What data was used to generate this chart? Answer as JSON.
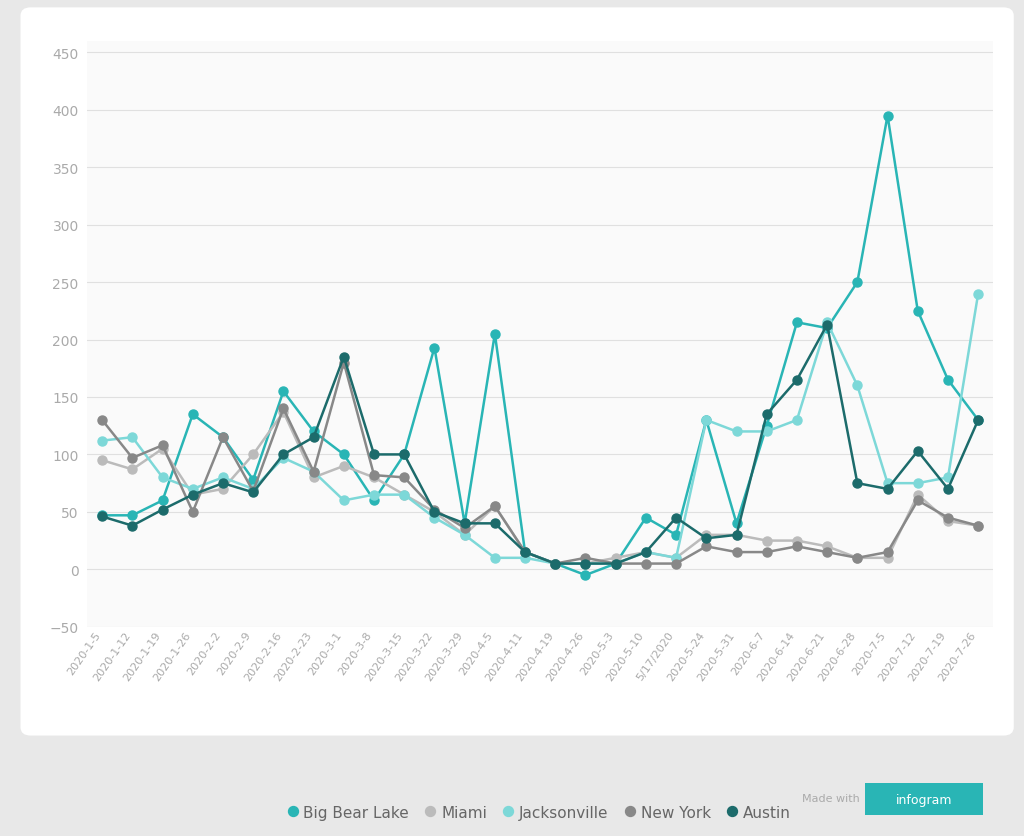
{
  "x_labels": [
    "2020-1-5",
    "2020-1-12",
    "2020-1-19",
    "2020-1-26",
    "2020-2-2",
    "2020-2-9",
    "2020-2-16",
    "2020-2-23",
    "2020-3-1",
    "2020-3-8",
    "2020-3-15",
    "2020-3-22",
    "2020-3-29",
    "2020-4-5",
    "2020-4-11",
    "2020-4-19",
    "2020-4-26",
    "2020-5-3",
    "2020-5-10",
    "5/17/2020",
    "2020-5-24",
    "2020-5-31",
    "2020-6-7",
    "2020-6-14",
    "2020-6-21",
    "2020-6-28",
    "2020-7-5",
    "2020-7-12",
    "2020-7-19",
    "2020-7-26"
  ],
  "big_bear_lake": [
    47,
    47,
    60,
    135,
    115,
    78,
    155,
    120,
    100,
    60,
    100,
    193,
    40,
    205,
    15,
    5,
    -5,
    5,
    45,
    30,
    130,
    40,
    125,
    215,
    210,
    250,
    395,
    225,
    165,
    130
  ],
  "miami": [
    95,
    87,
    105,
    65,
    70,
    100,
    137,
    80,
    90,
    80,
    65,
    50,
    30,
    55,
    15,
    5,
    5,
    10,
    15,
    10,
    30,
    30,
    25,
    25,
    20,
    10,
    10,
    65,
    42,
    38
  ],
  "jacksonville": [
    112,
    115,
    80,
    70,
    80,
    70,
    97,
    85,
    60,
    65,
    65,
    45,
    30,
    10,
    10,
    5,
    5,
    5,
    15,
    10,
    130,
    120,
    120,
    130,
    215,
    160,
    75,
    75,
    80,
    240
  ],
  "new_york": [
    130,
    97,
    108,
    50,
    115,
    68,
    140,
    85,
    180,
    82,
    80,
    52,
    36,
    55,
    15,
    5,
    10,
    5,
    5,
    5,
    20,
    15,
    15,
    20,
    15,
    10,
    15,
    60,
    45,
    38
  ],
  "austin": [
    46,
    38,
    52,
    65,
    75,
    67,
    100,
    115,
    185,
    100,
    100,
    50,
    40,
    40,
    15,
    5,
    5,
    5,
    15,
    45,
    27,
    30,
    135,
    165,
    213,
    75,
    70,
    103,
    70,
    130
  ],
  "series_colors": {
    "big_bear_lake": "#29B5B5",
    "miami": "#BBBBBB",
    "jacksonville": "#7DD8D8",
    "new_york": "#888888",
    "austin": "#1C6B6B"
  },
  "series_labels": {
    "big_bear_lake": "Big Bear Lake",
    "miami": "Miami",
    "jacksonville": "Jacksonville",
    "new_york": "New York",
    "austin": "Austin"
  },
  "ylim": [
    -50,
    460
  ],
  "yticks": [
    -50,
    0,
    50,
    100,
    150,
    200,
    250,
    300,
    350,
    400,
    450
  ],
  "outer_bg": "#e8e8e8",
  "inner_bg": "#fafafa",
  "grid_color": "#e0e0e0",
  "tick_color": "#aaaaaa",
  "marker_size": 6.5,
  "line_width": 1.8
}
